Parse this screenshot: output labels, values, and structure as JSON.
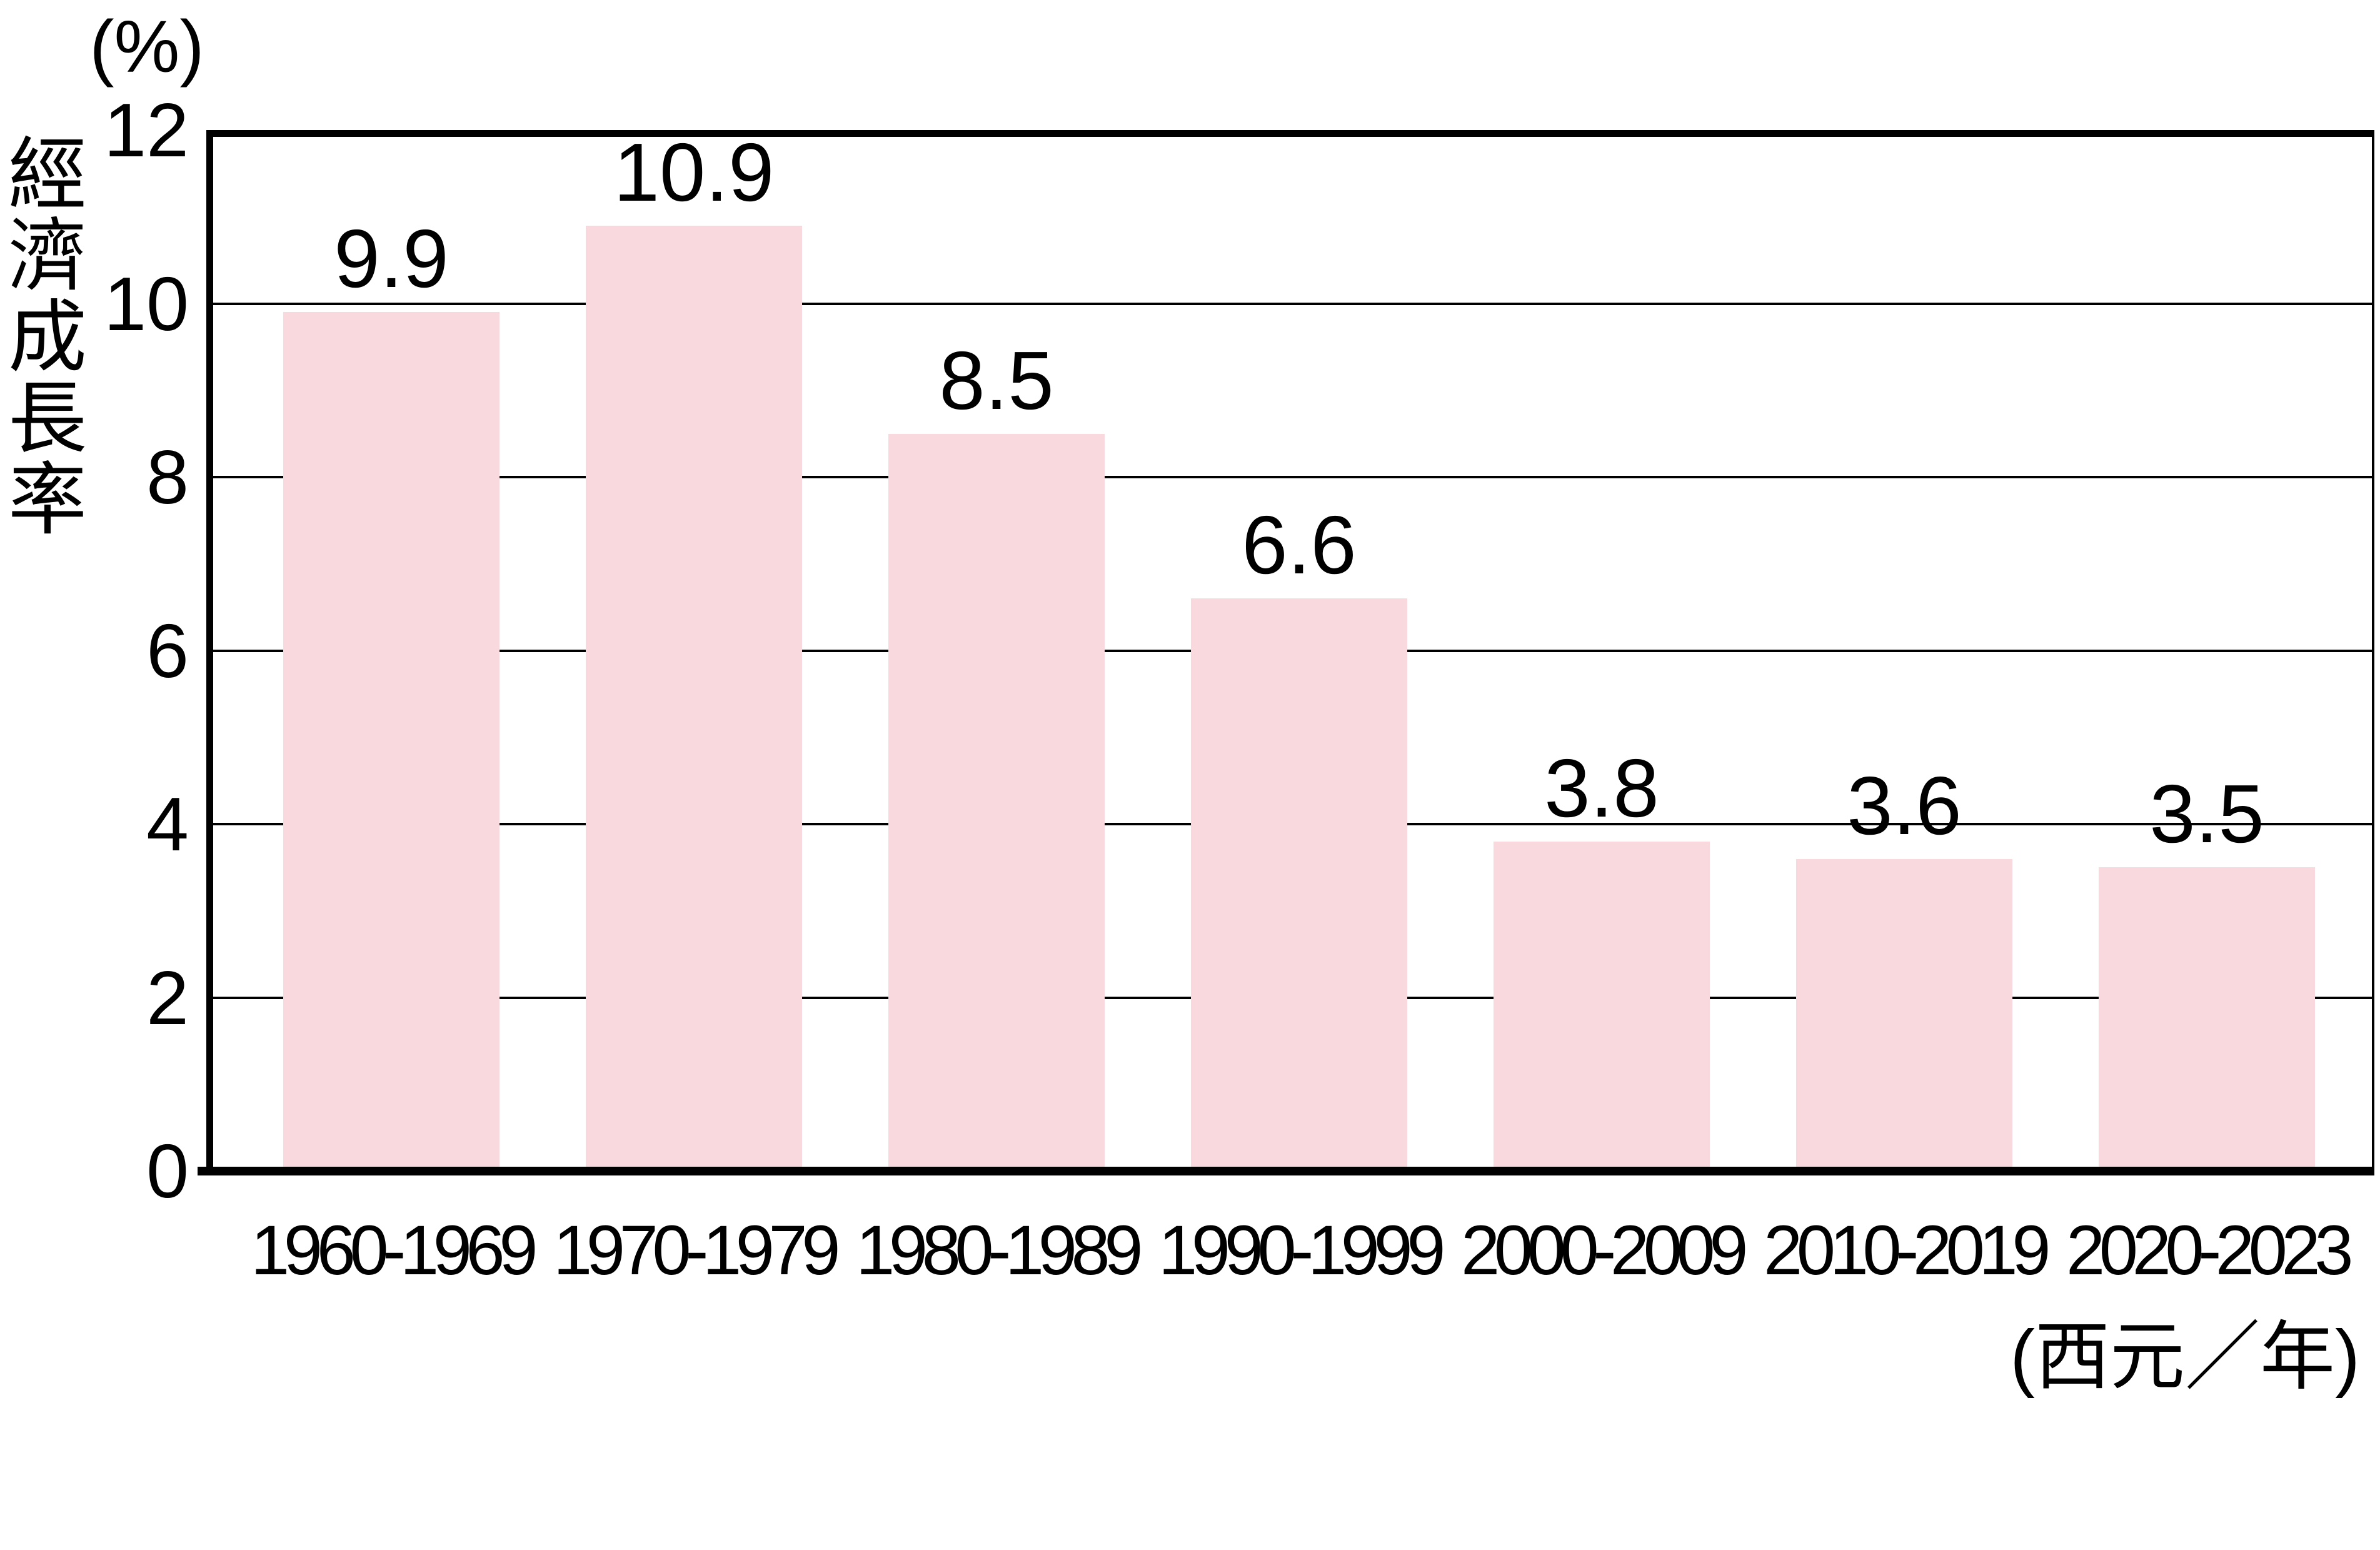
{
  "page": {
    "background": "#ffffff",
    "text_color": "#000000"
  },
  "chart_data": {
    "type": "bar",
    "title": "",
    "y_axis_unit": "(%)",
    "y_axis_title": "經濟成長率",
    "x_axis_unit": "(西元／年)",
    "categories": [
      "1960-1969",
      "1970-1979",
      "1980-1989",
      "1990-1999",
      "2000-2009",
      "2010-2019",
      "2020-2023"
    ],
    "values": [
      9.9,
      10.9,
      8.5,
      6.6,
      3.8,
      3.6,
      3.5
    ],
    "data_labels": [
      "9.9",
      "10.9",
      "8.5",
      "6.6",
      "3.8",
      "3.6",
      "3.5"
    ],
    "ylim": [
      0,
      12
    ],
    "yticks": [
      0,
      2,
      4,
      6,
      8,
      10,
      12
    ],
    "grid": true,
    "legend_position": "none",
    "bar_color": "#f9d8de",
    "axis_color": "#000000",
    "gridline_color": "#000000"
  }
}
